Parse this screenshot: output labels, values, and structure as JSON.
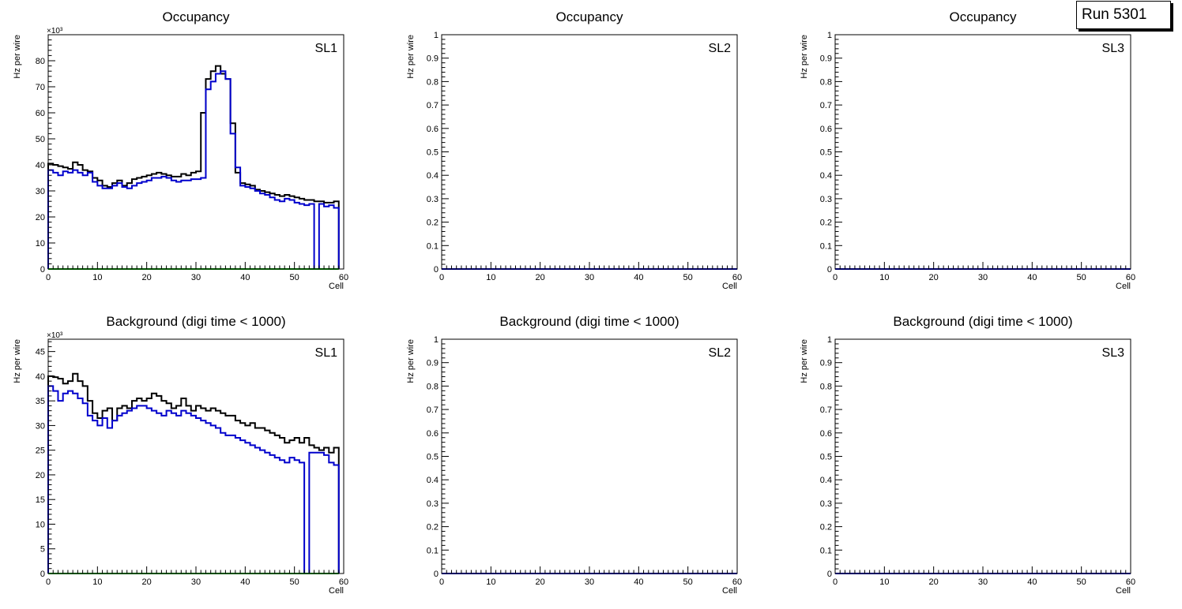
{
  "run_label": "Run 5301",
  "colors": {
    "total": "#000000",
    "blue": "#0000cc",
    "green": "#00a000",
    "frame": "#000000"
  },
  "chart_data": [
    {
      "type": "line",
      "step": true,
      "title": "Occupancy",
      "label": "SL1",
      "xlabel": "Cell",
      "ylabel": "Hz per wire",
      "multiplier": "×10³",
      "xlim": [
        0,
        60
      ],
      "ylim": [
        0,
        90
      ],
      "xticks": [
        "0",
        "10",
        "20",
        "30",
        "40",
        "50",
        "60"
      ],
      "yticks": [
        "0",
        "10",
        "20",
        "30",
        "40",
        "50",
        "60",
        "70",
        "80"
      ],
      "series": [
        {
          "name": "total",
          "color": "#000000",
          "values": [
            40.5,
            40.0,
            39.5,
            39.0,
            38.5,
            41.0,
            40.0,
            38.0,
            37.5,
            35.0,
            34.0,
            32.0,
            31.5,
            33.0,
            34.0,
            32.0,
            33.0,
            34.5,
            35.0,
            35.5,
            36.0,
            36.5,
            37.0,
            36.5,
            36.0,
            35.5,
            35.5,
            36.5,
            36.0,
            37.0,
            37.5,
            60.0,
            73.0,
            76.0,
            78.0,
            75.0,
            73.0,
            56.0,
            37.0,
            33.0,
            32.5,
            32.0,
            30.5,
            30.0,
            29.5,
            29.0,
            28.5,
            28.0,
            28.5,
            28.0,
            27.5,
            27.0,
            26.5,
            26.5,
            26.0,
            26.0,
            25.5,
            25.5,
            26.0
          ]
        },
        {
          "name": "blue",
          "color": "#0000cc",
          "values": [
            38.0,
            37.0,
            36.0,
            37.5,
            37.0,
            38.0,
            37.0,
            36.0,
            37.0,
            33.5,
            32.0,
            31.0,
            31.0,
            32.0,
            33.0,
            31.5,
            31.0,
            32.0,
            33.0,
            33.5,
            34.0,
            35.0,
            35.0,
            35.5,
            35.0,
            34.0,
            33.5,
            34.0,
            34.0,
            34.5,
            34.5,
            35.0,
            69.0,
            72.0,
            75.0,
            76.0,
            73.0,
            52.0,
            39.0,
            32.0,
            31.5,
            31.0,
            30.0,
            29.0,
            28.5,
            27.5,
            26.5,
            26.0,
            27.0,
            26.5,
            25.5,
            25.0,
            24.5,
            25.0,
            0.0,
            25.0,
            24.0,
            24.5,
            23.5
          ]
        },
        {
          "name": "green",
          "color": "#00a000",
          "values": [
            0,
            0,
            0,
            0,
            0,
            0,
            0,
            0,
            0,
            0,
            0,
            0,
            0,
            0,
            0,
            0,
            0,
            0,
            0,
            0,
            0,
            0,
            0,
            0,
            0,
            0,
            0,
            0,
            0,
            0,
            0,
            0,
            0,
            0,
            0,
            0,
            0,
            0,
            0,
            0,
            0,
            0,
            0,
            0,
            0,
            0,
            0,
            0,
            0,
            0,
            0,
            0,
            0,
            0,
            0,
            0,
            0,
            0,
            0
          ]
        }
      ]
    },
    {
      "type": "line",
      "step": true,
      "title": "Occupancy",
      "label": "SL2",
      "xlabel": "Cell",
      "ylabel": "Hz per wire",
      "multiplier": "",
      "xlim": [
        0,
        60
      ],
      "ylim": [
        0,
        1
      ],
      "xticks": [
        "0",
        "10",
        "20",
        "30",
        "40",
        "50",
        "60"
      ],
      "yticks": [
        "0",
        "0.1",
        "0.2",
        "0.3",
        "0.4",
        "0.5",
        "0.6",
        "0.7",
        "0.8",
        "0.9",
        "1"
      ],
      "series": [
        {
          "name": "blue",
          "color": "#0000cc",
          "values": [
            0,
            0,
            0,
            0,
            0,
            0,
            0,
            0,
            0,
            0,
            0,
            0,
            0,
            0,
            0,
            0,
            0,
            0,
            0,
            0,
            0,
            0,
            0,
            0,
            0,
            0,
            0,
            0,
            0,
            0,
            0,
            0,
            0,
            0,
            0,
            0,
            0,
            0,
            0,
            0,
            0,
            0,
            0,
            0,
            0,
            0,
            0,
            0,
            0,
            0,
            0,
            0,
            0,
            0,
            0,
            0,
            0,
            0,
            0,
            0
          ]
        }
      ]
    },
    {
      "type": "line",
      "step": true,
      "title": "Occupancy",
      "label": "SL3",
      "xlabel": "Cell",
      "ylabel": "Hz per wire",
      "multiplier": "",
      "xlim": [
        0,
        60
      ],
      "ylim": [
        0,
        1
      ],
      "xticks": [
        "0",
        "10",
        "20",
        "30",
        "40",
        "50",
        "60"
      ],
      "yticks": [
        "0",
        "0.1",
        "0.2",
        "0.3",
        "0.4",
        "0.5",
        "0.6",
        "0.7",
        "0.8",
        "0.9",
        "1"
      ],
      "series": [
        {
          "name": "blue",
          "color": "#0000cc",
          "values": [
            0,
            0,
            0,
            0,
            0,
            0,
            0,
            0,
            0,
            0,
            0,
            0,
            0,
            0,
            0,
            0,
            0,
            0,
            0,
            0,
            0,
            0,
            0,
            0,
            0,
            0,
            0,
            0,
            0,
            0,
            0,
            0,
            0,
            0,
            0,
            0,
            0,
            0,
            0,
            0,
            0,
            0,
            0,
            0,
            0,
            0,
            0,
            0,
            0,
            0,
            0,
            0,
            0,
            0,
            0,
            0,
            0,
            0,
            0,
            0
          ]
        }
      ]
    },
    {
      "type": "line",
      "step": true,
      "title": "Background (digi time < 1000)",
      "label": "SL1",
      "xlabel": "Cell",
      "ylabel": "Hz per wire",
      "multiplier": "×10³",
      "xlim": [
        0,
        60
      ],
      "ylim": [
        0,
        47.5
      ],
      "xticks": [
        "0",
        "10",
        "20",
        "30",
        "40",
        "50",
        "60"
      ],
      "yticks": [
        "0",
        "5",
        "10",
        "15",
        "20",
        "25",
        "30",
        "35",
        "40",
        "45"
      ],
      "series": [
        {
          "name": "total",
          "color": "#000000",
          "values": [
            40.0,
            39.8,
            39.5,
            38.5,
            39.0,
            40.5,
            39.0,
            38.0,
            35.0,
            32.5,
            31.5,
            33.0,
            33.5,
            31.0,
            33.5,
            34.0,
            33.5,
            35.0,
            35.5,
            35.0,
            35.5,
            36.5,
            36.0,
            35.0,
            34.5,
            33.5,
            34.0,
            35.5,
            34.0,
            33.0,
            34.0,
            33.5,
            33.0,
            33.5,
            33.0,
            32.5,
            32.0,
            32.0,
            31.0,
            30.5,
            30.0,
            30.5,
            29.5,
            29.5,
            29.0,
            28.5,
            28.0,
            27.5,
            26.5,
            27.0,
            27.5,
            26.5,
            27.5,
            26.0,
            25.5,
            25.0,
            25.5,
            24.5,
            25.5
          ]
        },
        {
          "name": "blue",
          "color": "#0000cc",
          "values": [
            38.0,
            37.0,
            35.0,
            36.5,
            37.0,
            36.5,
            35.5,
            34.5,
            32.0,
            31.0,
            30.0,
            31.5,
            29.5,
            31.0,
            32.0,
            32.5,
            33.0,
            33.5,
            34.0,
            34.0,
            33.5,
            33.0,
            32.5,
            32.0,
            33.0,
            32.5,
            32.0,
            33.0,
            32.5,
            32.0,
            31.5,
            31.0,
            30.5,
            30.0,
            29.5,
            28.5,
            28.0,
            28.0,
            27.5,
            27.0,
            26.5,
            26.0,
            25.5,
            25.0,
            24.5,
            24.0,
            23.5,
            23.0,
            22.5,
            23.5,
            23.0,
            22.5,
            0.0,
            24.5,
            24.5,
            24.5,
            24.0,
            22.5,
            22.0
          ]
        },
        {
          "name": "green",
          "color": "#00a000",
          "values": [
            0,
            0,
            0,
            0,
            0,
            0,
            0,
            0,
            0,
            0,
            0,
            0,
            0,
            0,
            0,
            0,
            0,
            0,
            0,
            0,
            0,
            0,
            0,
            0,
            0,
            0,
            0,
            0,
            0,
            0,
            0,
            0,
            0,
            0,
            0,
            0,
            0,
            0,
            0,
            0,
            0,
            0,
            0,
            0,
            0,
            0,
            0,
            0,
            0,
            0,
            0,
            0,
            0,
            0,
            0,
            0,
            0,
            0,
            0
          ]
        }
      ]
    },
    {
      "type": "line",
      "step": true,
      "title": "Background (digi time < 1000)",
      "label": "SL2",
      "xlabel": "Cell",
      "ylabel": "Hz per wire",
      "multiplier": "",
      "xlim": [
        0,
        60
      ],
      "ylim": [
        0,
        1
      ],
      "xticks": [
        "0",
        "10",
        "20",
        "30",
        "40",
        "50",
        "60"
      ],
      "yticks": [
        "0",
        "0.1",
        "0.2",
        "0.3",
        "0.4",
        "0.5",
        "0.6",
        "0.7",
        "0.8",
        "0.9",
        "1"
      ],
      "series": [
        {
          "name": "blue",
          "color": "#0000cc",
          "values": [
            0,
            0,
            0,
            0,
            0,
            0,
            0,
            0,
            0,
            0,
            0,
            0,
            0,
            0,
            0,
            0,
            0,
            0,
            0,
            0,
            0,
            0,
            0,
            0,
            0,
            0,
            0,
            0,
            0,
            0,
            0,
            0,
            0,
            0,
            0,
            0,
            0,
            0,
            0,
            0,
            0,
            0,
            0,
            0,
            0,
            0,
            0,
            0,
            0,
            0,
            0,
            0,
            0,
            0,
            0,
            0,
            0,
            0,
            0,
            0
          ]
        }
      ]
    },
    {
      "type": "line",
      "step": true,
      "title": "Background (digi time < 1000)",
      "label": "SL3",
      "xlabel": "Cell",
      "ylabel": "Hz per wire",
      "multiplier": "",
      "xlim": [
        0,
        60
      ],
      "ylim": [
        0,
        1
      ],
      "xticks": [
        "0",
        "10",
        "20",
        "30",
        "40",
        "50",
        "60"
      ],
      "yticks": [
        "0",
        "0.1",
        "0.2",
        "0.3",
        "0.4",
        "0.5",
        "0.6",
        "0.7",
        "0.8",
        "0.9",
        "1"
      ],
      "series": [
        {
          "name": "blue",
          "color": "#0000cc",
          "values": [
            0,
            0,
            0,
            0,
            0,
            0,
            0,
            0,
            0,
            0,
            0,
            0,
            0,
            0,
            0,
            0,
            0,
            0,
            0,
            0,
            0,
            0,
            0,
            0,
            0,
            0,
            0,
            0,
            0,
            0,
            0,
            0,
            0,
            0,
            0,
            0,
            0,
            0,
            0,
            0,
            0,
            0,
            0,
            0,
            0,
            0,
            0,
            0,
            0,
            0,
            0,
            0,
            0,
            0,
            0,
            0,
            0,
            0,
            0,
            0
          ]
        }
      ]
    }
  ]
}
